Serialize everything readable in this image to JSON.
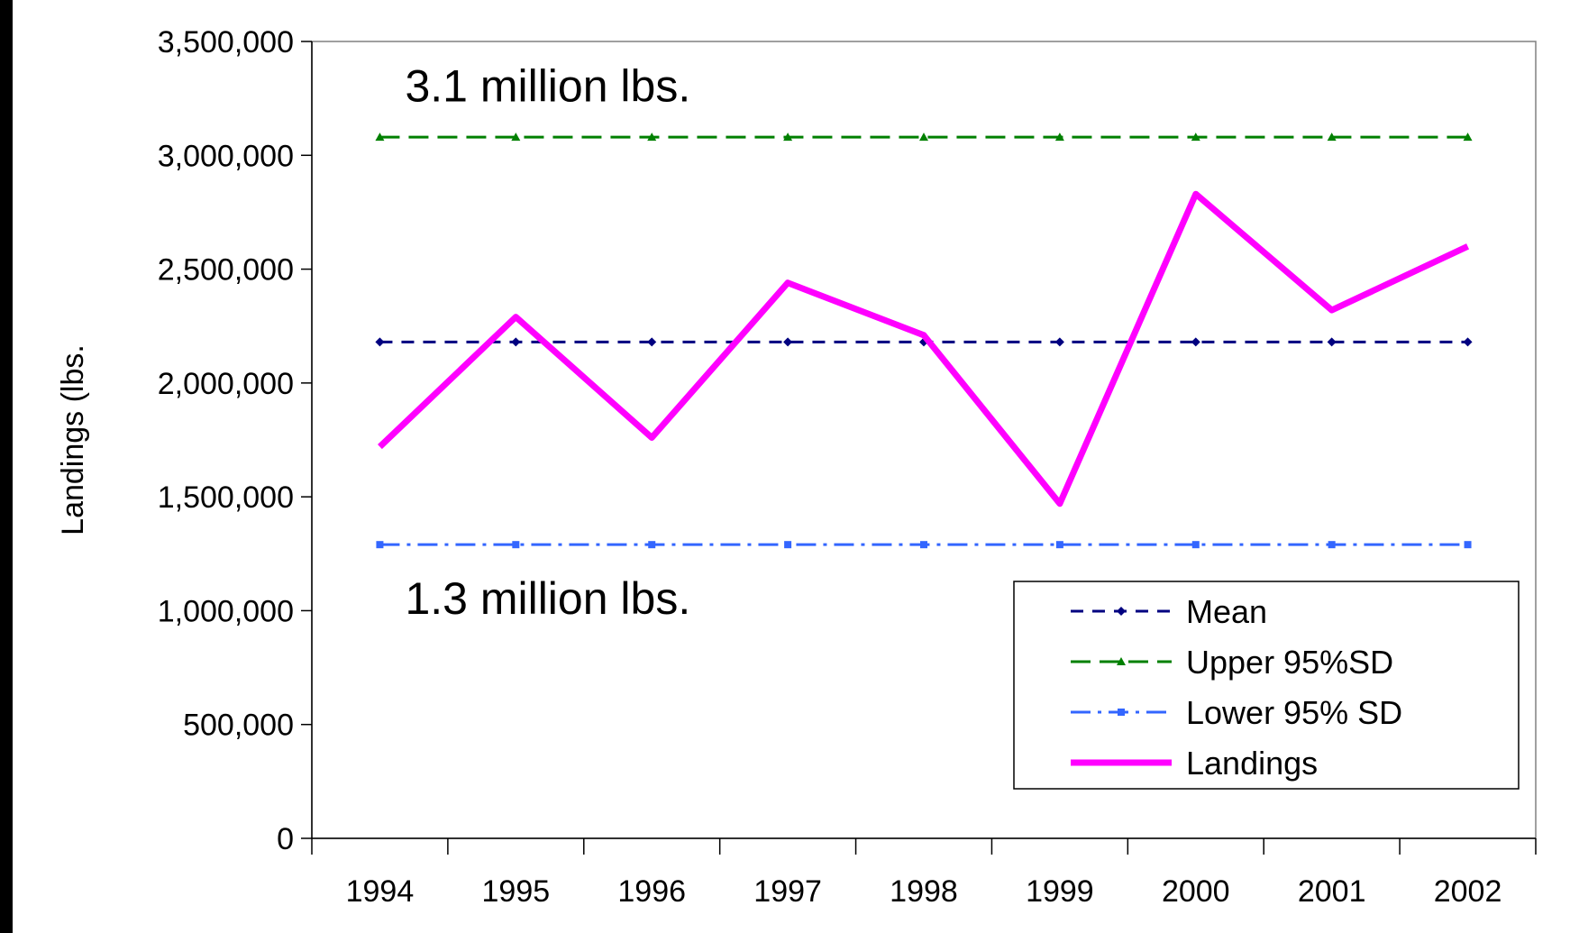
{
  "chart_data": {
    "type": "line",
    "title": "",
    "xlabel": "",
    "ylabel": "Landings (lbs.",
    "ylim": [
      0,
      3500000
    ],
    "yticks": [
      0,
      500000,
      1000000,
      1500000,
      2000000,
      2500000,
      3000000,
      3500000
    ],
    "ytick_labels": [
      "0",
      "500,000",
      "1,000,000",
      "1,500,000",
      "2,000,000",
      "2,500,000",
      "3,000,000",
      "3,500,000"
    ],
    "categories": [
      "1994",
      "1995",
      "1996",
      "1997",
      "1998",
      "1999",
      "2000",
      "2001",
      "2002"
    ],
    "grid": false,
    "legend_position": "bottom-right",
    "series": [
      {
        "name": "Mean",
        "values": [
          2180000,
          2180000,
          2180000,
          2180000,
          2180000,
          2180000,
          2180000,
          2180000,
          2180000
        ],
        "color": "#000080",
        "style": "dashed",
        "marker": "diamond"
      },
      {
        "name": "Upper 95%SD",
        "values": [
          3080000,
          3080000,
          3080000,
          3080000,
          3080000,
          3080000,
          3080000,
          3080000,
          3080000
        ],
        "color": "#008000",
        "style": "long-dash",
        "marker": "triangle"
      },
      {
        "name": "Lower 95% SD",
        "values": [
          1290000,
          1290000,
          1290000,
          1290000,
          1290000,
          1290000,
          1290000,
          1290000,
          1290000
        ],
        "color": "#3366FF",
        "style": "dash-dot",
        "marker": "square"
      },
      {
        "name": "Landings",
        "values": [
          1720000,
          2290000,
          1760000,
          2440000,
          2210000,
          1470000,
          2830000,
          2320000,
          2600000
        ],
        "color": "#FF00FF",
        "style": "solid",
        "marker": "none"
      }
    ],
    "annotations": [
      {
        "text": "3.1 million lbs.",
        "x": "1994",
        "y": 3300000
      },
      {
        "text": "1.3 million lbs.",
        "x": "1994",
        "y": 1050000
      }
    ]
  }
}
